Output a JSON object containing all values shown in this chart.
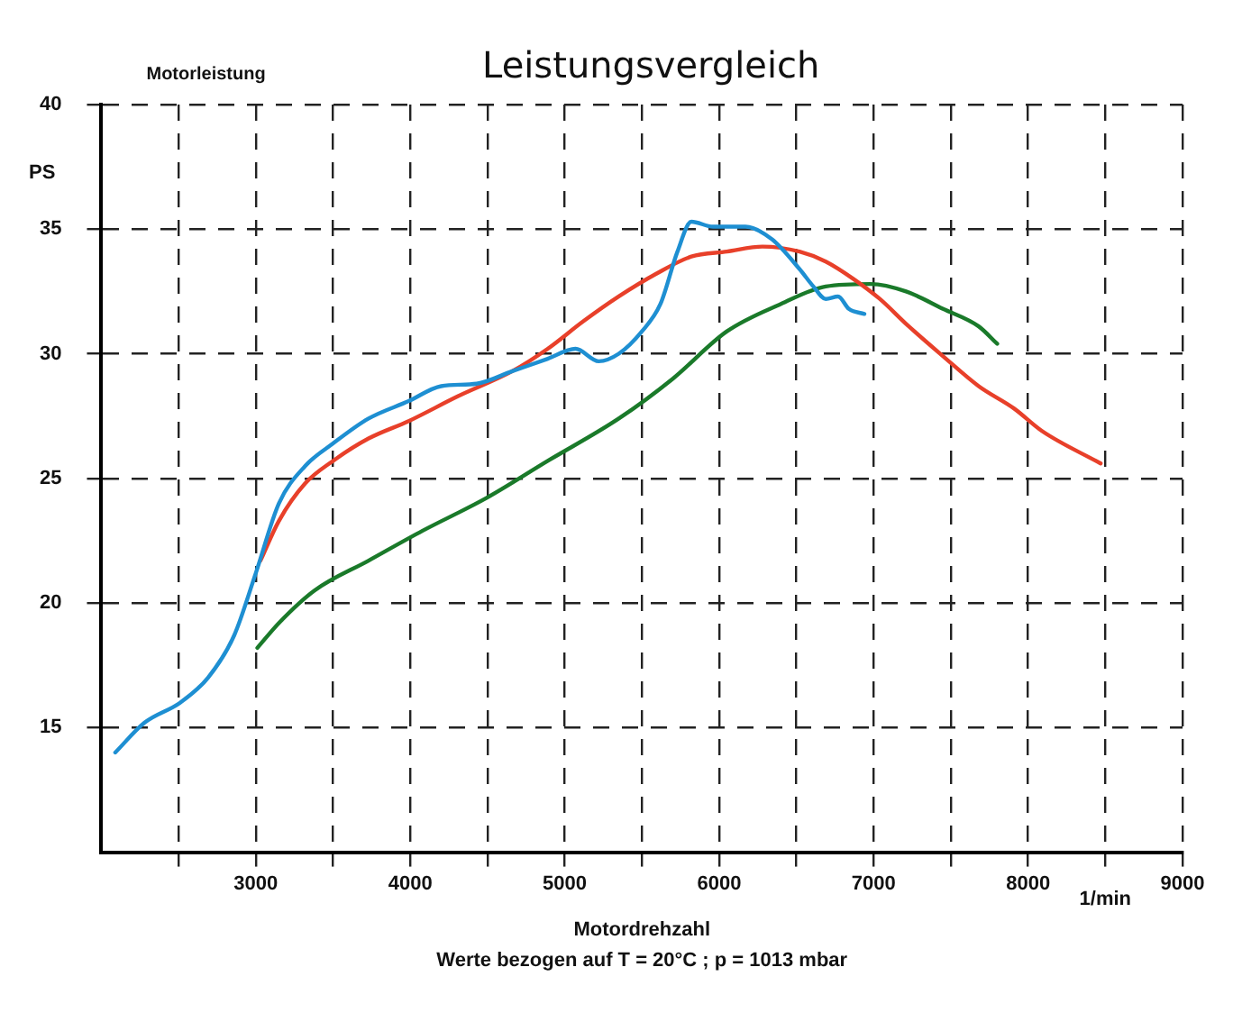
{
  "chart_data": {
    "type": "line",
    "title": "Leistungsvergleich",
    "ylabel": "Motorleistung",
    "xlabel": "Motordrehzahl",
    "annotations": [
      "PS",
      "1/min",
      "Werte bezogen auf T = 20°C ; p = 1013 mbar"
    ],
    "xlim": [
      2000,
      9000
    ],
    "ylim": [
      10,
      40
    ],
    "xticks": [
      {
        "value": 2500,
        "label": null
      },
      3000,
      {
        "value": 3500,
        "label": null
      },
      4000,
      {
        "value": 4500,
        "label": null
      },
      5000,
      {
        "value": 5500,
        "label": null
      },
      6000,
      {
        "value": 6500,
        "label": null
      },
      7000,
      {
        "value": 7500,
        "label": null
      },
      8000,
      {
        "value": 8500,
        "label": null
      },
      9000
    ],
    "yticks": [
      15,
      20,
      25,
      30,
      35,
      40
    ],
    "grid": true,
    "legend": false,
    "marker": "none",
    "line_style": "solid",
    "series": [
      {
        "color": "#1e8fd2",
        "x": [
          2090,
          2280,
          2510,
          2690,
          2860,
          3000,
          3150,
          3320,
          3500,
          3730,
          3990,
          4200,
          4430,
          4660,
          4890,
          5070,
          5220,
          5350,
          5500,
          5620,
          5730,
          5820,
          5960,
          6170,
          6340,
          6520,
          6610,
          6690,
          6770,
          6840,
          6940
        ],
        "values": [
          14.0,
          15.2,
          16.0,
          17.0,
          18.7,
          21.2,
          24.0,
          25.5,
          26.4,
          27.4,
          28.1,
          28.7,
          28.8,
          29.3,
          29.8,
          30.2,
          29.7,
          30.0,
          30.9,
          32.0,
          34.1,
          35.3,
          35.1,
          35.1,
          34.6,
          33.4,
          32.7,
          32.2,
          32.3,
          31.8,
          31.6
        ]
      },
      {
        "color": "#e8402a",
        "x": [
          3030,
          3150,
          3320,
          3500,
          3730,
          3990,
          4310,
          4660,
          4890,
          5120,
          5350,
          5590,
          5820,
          6050,
          6280,
          6520,
          6690,
          6870,
          7040,
          7210,
          7450,
          7680,
          7910,
          8090,
          8470
        ],
        "values": [
          21.7,
          23.3,
          24.8,
          25.7,
          26.6,
          27.3,
          28.3,
          29.3,
          30.2,
          31.3,
          32.3,
          33.2,
          33.9,
          34.1,
          34.3,
          34.1,
          33.7,
          33.0,
          32.2,
          31.2,
          29.9,
          28.7,
          27.8,
          26.9,
          25.6
        ]
      },
      {
        "color": "#1a7a2a",
        "x": [
          3010,
          3150,
          3380,
          3730,
          4080,
          4490,
          4890,
          5350,
          5700,
          6050,
          6400,
          6690,
          6980,
          7210,
          7450,
          7680,
          7800
        ],
        "values": [
          18.2,
          19.2,
          20.5,
          21.7,
          22.9,
          24.2,
          25.7,
          27.4,
          29.0,
          30.9,
          32.0,
          32.7,
          32.8,
          32.5,
          31.8,
          31.1,
          30.4
        ]
      }
    ]
  }
}
